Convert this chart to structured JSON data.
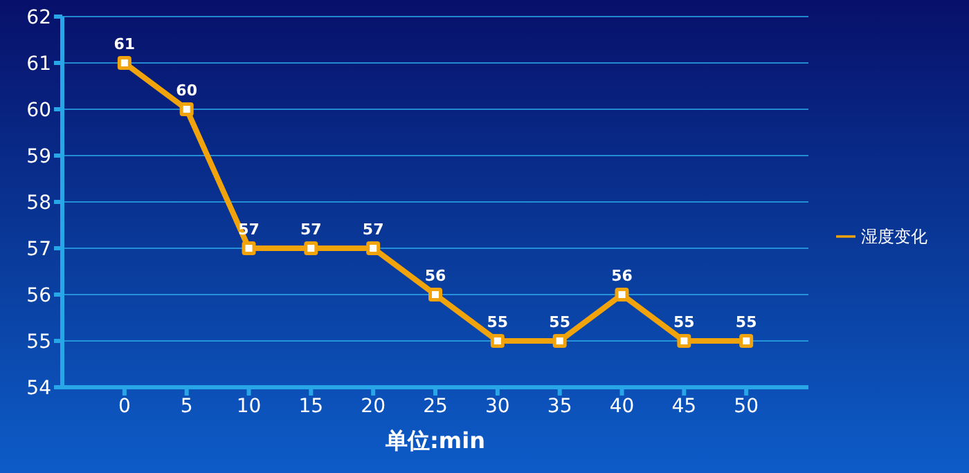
{
  "chart_data": {
    "type": "line",
    "xlabel": "单位:min",
    "x": [
      0,
      5,
      10,
      15,
      20,
      25,
      30,
      35,
      40,
      45,
      50
    ],
    "series": [
      {
        "name": "湿度变化",
        "color": "#f0a30a",
        "values": [
          61,
          60,
          57,
          57,
          57,
          56,
          55,
          55,
          56,
          55,
          55
        ]
      }
    ],
    "xlim": [
      -5,
      55
    ],
    "xticks": [
      0,
      5,
      10,
      15,
      20,
      25,
      30,
      35,
      40,
      45,
      50
    ],
    "ylim": [
      54,
      62
    ],
    "yticks": [
      54,
      55,
      56,
      57,
      58,
      59,
      60,
      61,
      62
    ],
    "grid": "y",
    "legend": "right",
    "marker": "square",
    "data_labels": true
  }
}
